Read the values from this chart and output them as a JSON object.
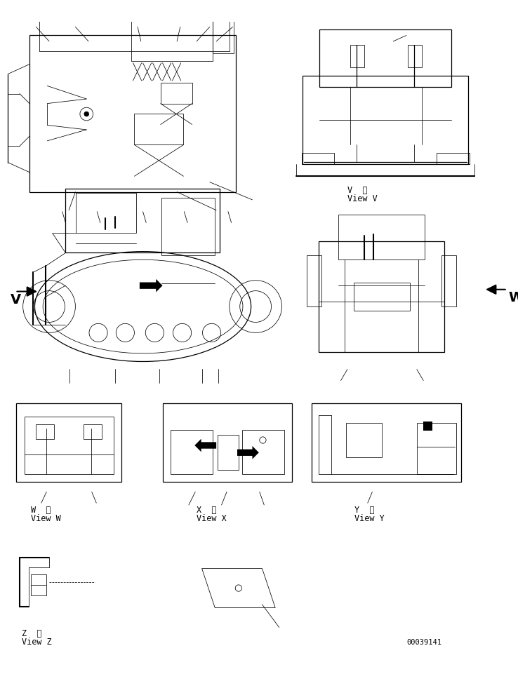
{
  "bg_color": "#ffffff",
  "line_color": "#000000",
  "fig_width": 7.38,
  "fig_height": 9.62,
  "dpi": 100,
  "part_number": "00039141",
  "view_v_kanji": "V  視",
  "view_v": "View V",
  "view_w_kanji": "W  視",
  "view_w": "View W",
  "view_x_kanji": "X  視",
  "view_x": "View X",
  "view_y_kanji": "Y  視",
  "view_y": "View Y",
  "view_z_kanji": "Z  視",
  "view_z": "View Z"
}
